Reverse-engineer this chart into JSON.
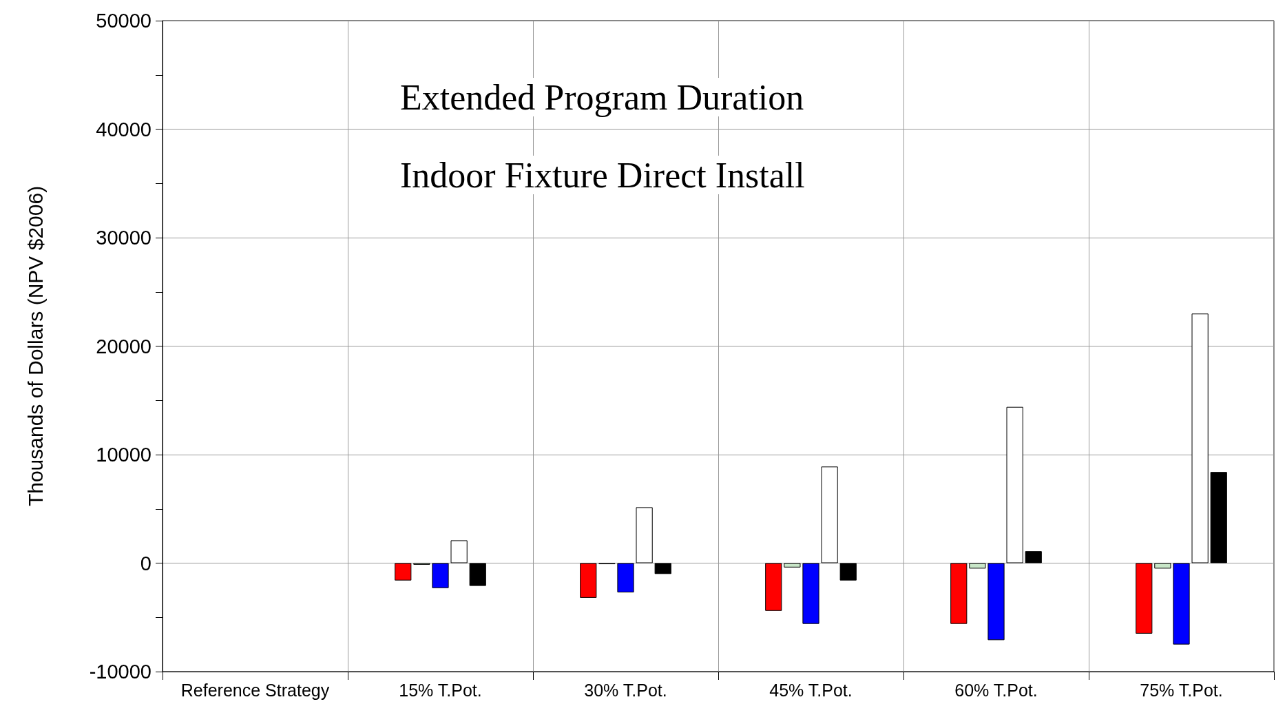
{
  "chart_data": {
    "type": "bar",
    "title": "Extended Program Duration",
    "subtitle": "Indoor Fixture Direct Install",
    "ylabel": "Thousands of Dollars (NPV $2006)",
    "categories": [
      "Reference Strategy",
      "15% T.Pot.",
      "30% T.Pot.",
      "45% T.Pot.",
      "60% T.Pot.",
      "75% T.Pot."
    ],
    "series": [
      {
        "color": "#ff0000",
        "values": [
          null,
          -1600,
          -3200,
          -4400,
          -5600,
          -6500
        ]
      },
      {
        "color": "#c8e6c8",
        "values": [
          null,
          -150,
          -100,
          -400,
          -500,
          -500
        ]
      },
      {
        "color": "#0000ff",
        "values": [
          null,
          -2300,
          -2700,
          -5600,
          -7100,
          -7500
        ]
      },
      {
        "color": "#ffffff",
        "values": [
          null,
          2100,
          5150,
          8900,
          14400,
          23000
        ]
      },
      {
        "color": "#000000",
        "values": [
          null,
          -2100,
          -1000,
          -1600,
          1100,
          8400
        ]
      }
    ],
    "ylim": [
      -10000,
      50000
    ],
    "yticks": [
      -10000,
      0,
      10000,
      20000,
      30000,
      40000,
      50000
    ],
    "grid": true
  }
}
